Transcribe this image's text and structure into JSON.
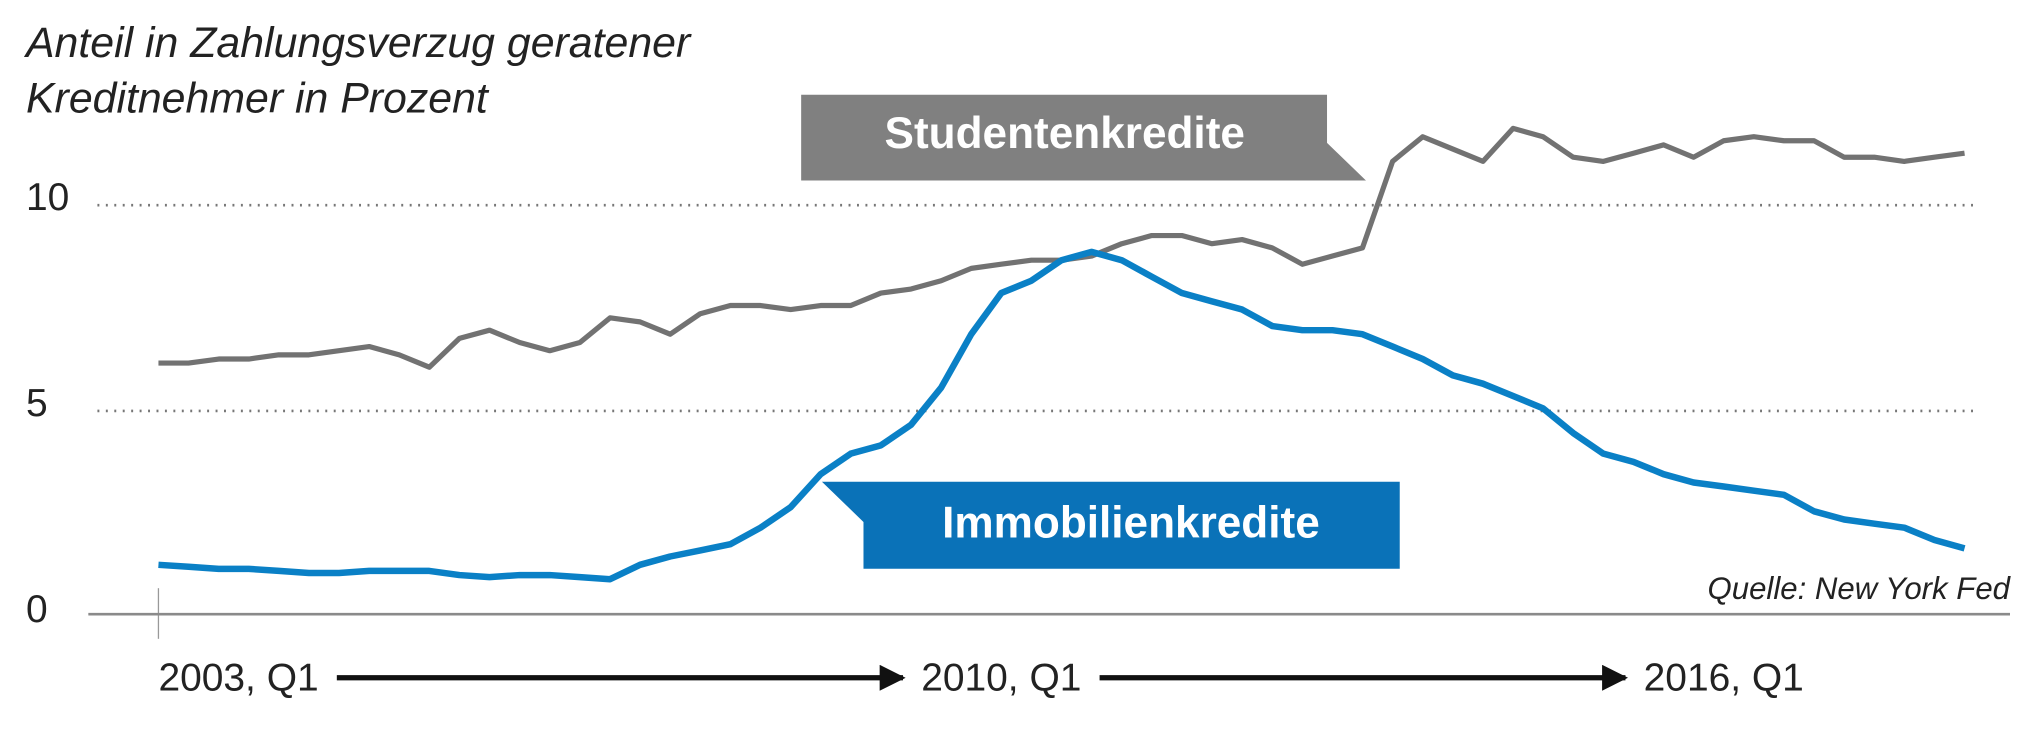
{
  "chart_data": {
    "type": "line",
    "ylabel": [
      "Anteil in Zahlungsverzug geratener",
      "Kreditnehmer in Prozent"
    ],
    "source": "Quelle: New York Fed",
    "categories": [
      "2003, Q1",
      null,
      null,
      null,
      null,
      null,
      null,
      null,
      null,
      null,
      null,
      null,
      null,
      null,
      null,
      null,
      null,
      null,
      null,
      null,
      null,
      null,
      null,
      null,
      null,
      null,
      null,
      null,
      "2010, Q1",
      null,
      null,
      null,
      null,
      null,
      null,
      null,
      null,
      null,
      null,
      null,
      null,
      null,
      null,
      null,
      null,
      null,
      null,
      null,
      null,
      null,
      null,
      null,
      "2016, Q1",
      null,
      null,
      null,
      null,
      null,
      null,
      null,
      null
    ],
    "series": [
      {
        "name": "Studentenkredite",
        "color": "#727272",
        "label_color": "#808080",
        "values": [
          6.1,
          6.1,
          6.2,
          6.2,
          6.3,
          6.3,
          6.4,
          6.5,
          6.3,
          6.0,
          6.7,
          6.9,
          6.6,
          6.4,
          6.6,
          7.2,
          7.1,
          6.8,
          7.3,
          7.5,
          7.5,
          7.4,
          7.5,
          7.5,
          7.8,
          7.9,
          8.1,
          8.4,
          8.5,
          8.6,
          8.6,
          8.7,
          9.0,
          9.2,
          9.2,
          9.0,
          9.1,
          8.9,
          8.5,
          8.7,
          8.9,
          11.0,
          11.6,
          11.3,
          11.0,
          11.8,
          11.6,
          11.1,
          11.0,
          11.2,
          11.4,
          11.1,
          11.5,
          11.6,
          11.5,
          11.5,
          11.1,
          11.1,
          11.0,
          11.1,
          11.2
        ]
      },
      {
        "name": "Immobilienkredite",
        "color": "#0a80c6",
        "label_color": "#0a72b8",
        "values": [
          1.2,
          1.15,
          1.1,
          1.1,
          1.05,
          1.0,
          1.0,
          1.05,
          1.05,
          1.05,
          0.95,
          0.9,
          0.95,
          0.95,
          0.9,
          0.85,
          1.2,
          1.4,
          1.55,
          1.7,
          2.1,
          2.6,
          3.4,
          3.9,
          4.1,
          4.6,
          5.5,
          6.8,
          7.8,
          8.1,
          8.6,
          8.8,
          8.6,
          8.2,
          7.8,
          7.6,
          7.4,
          7.0,
          6.9,
          6.9,
          6.8,
          6.5,
          6.2,
          5.8,
          5.6,
          5.3,
          5.0,
          4.4,
          3.9,
          3.7,
          3.4,
          3.2,
          3.1,
          3.0,
          2.9,
          2.5,
          2.3,
          2.2,
          2.1,
          1.8,
          1.6
        ]
      }
    ],
    "ylim": [
      0,
      12.5
    ],
    "yticks": [
      0,
      5,
      10
    ],
    "grid": true
  }
}
